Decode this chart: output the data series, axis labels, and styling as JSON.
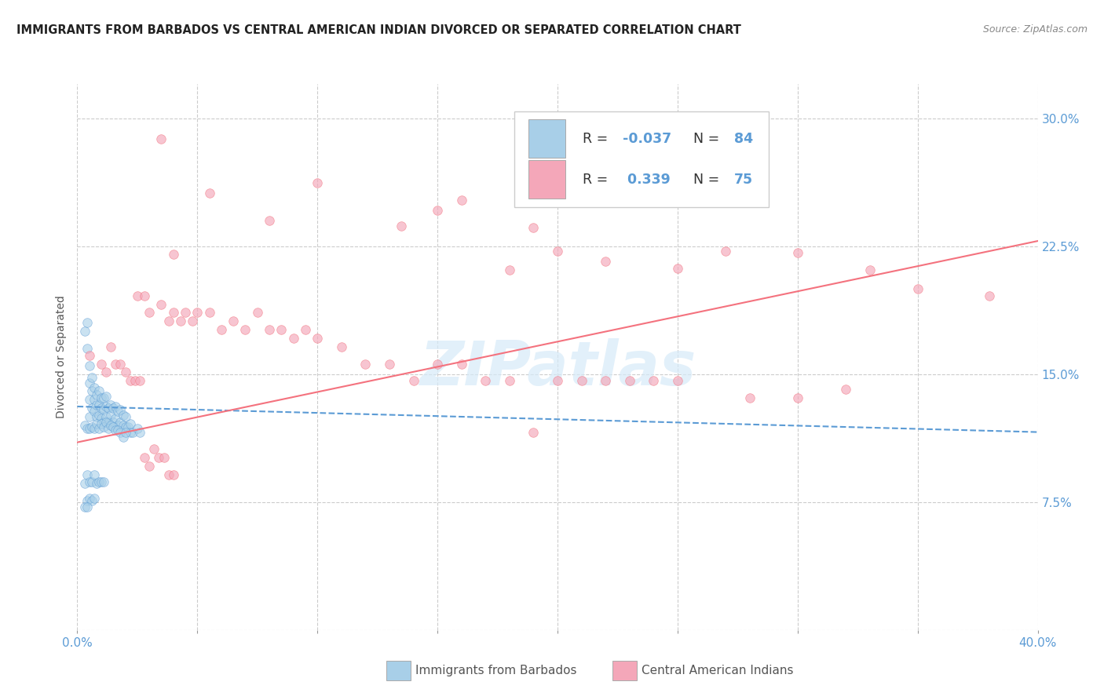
{
  "title": "IMMIGRANTS FROM BARBADOS VS CENTRAL AMERICAN INDIAN DIVORCED OR SEPARATED CORRELATION CHART",
  "source": "Source: ZipAtlas.com",
  "ylabel": "Divorced or Separated",
  "xlim": [
    0.0,
    0.4
  ],
  "ylim": [
    0.0,
    0.32
  ],
  "xticks": [
    0.0,
    0.05,
    0.1,
    0.15,
    0.2,
    0.25,
    0.3,
    0.35,
    0.4
  ],
  "yticks": [
    0.0,
    0.075,
    0.15,
    0.225,
    0.3
  ],
  "ytick_labels": [
    "",
    "7.5%",
    "15.0%",
    "22.5%",
    "30.0%"
  ],
  "color_blue": "#a8cfe8",
  "color_pink": "#f4a7b9",
  "color_blue_line": "#5b9bd5",
  "color_pink_line": "#f4727e",
  "blue_scatter_x": [
    0.003,
    0.004,
    0.004,
    0.005,
    0.005,
    0.005,
    0.005,
    0.006,
    0.006,
    0.006,
    0.007,
    0.007,
    0.007,
    0.008,
    0.008,
    0.008,
    0.009,
    0.009,
    0.009,
    0.01,
    0.01,
    0.01,
    0.011,
    0.011,
    0.011,
    0.012,
    0.012,
    0.012,
    0.013,
    0.013,
    0.014,
    0.014,
    0.015,
    0.015,
    0.016,
    0.016,
    0.017,
    0.017,
    0.018,
    0.018,
    0.019,
    0.019,
    0.02,
    0.02,
    0.021,
    0.022,
    0.022,
    0.023,
    0.025,
    0.026,
    0.003,
    0.004,
    0.005,
    0.006,
    0.007,
    0.008,
    0.009,
    0.01,
    0.011,
    0.012,
    0.013,
    0.014,
    0.015,
    0.016,
    0.017,
    0.018,
    0.019,
    0.02,
    0.003,
    0.004,
    0.005,
    0.006,
    0.007,
    0.008,
    0.009,
    0.01,
    0.011,
    0.004,
    0.005,
    0.006,
    0.007,
    0.003,
    0.004
  ],
  "blue_scatter_y": [
    0.175,
    0.165,
    0.18,
    0.125,
    0.135,
    0.145,
    0.155,
    0.13,
    0.14,
    0.148,
    0.128,
    0.135,
    0.142,
    0.125,
    0.132,
    0.138,
    0.126,
    0.132,
    0.14,
    0.124,
    0.13,
    0.136,
    0.122,
    0.129,
    0.136,
    0.125,
    0.131,
    0.137,
    0.122,
    0.13,
    0.126,
    0.132,
    0.122,
    0.13,
    0.124,
    0.131,
    0.12,
    0.128,
    0.122,
    0.129,
    0.12,
    0.126,
    0.119,
    0.125,
    0.119,
    0.116,
    0.121,
    0.116,
    0.118,
    0.116,
    0.12,
    0.118,
    0.118,
    0.119,
    0.118,
    0.121,
    0.118,
    0.121,
    0.119,
    0.122,
    0.118,
    0.12,
    0.119,
    0.117,
    0.117,
    0.116,
    0.113,
    0.116,
    0.086,
    0.091,
    0.087,
    0.087,
    0.091,
    0.086,
    0.087,
    0.087,
    0.087,
    0.076,
    0.077,
    0.076,
    0.077,
    0.072,
    0.072
  ],
  "pink_scatter_x": [
    0.035,
    0.04,
    0.055,
    0.08,
    0.1,
    0.135,
    0.15,
    0.16,
    0.18,
    0.19,
    0.2,
    0.22,
    0.25,
    0.27,
    0.3,
    0.33,
    0.35,
    0.38,
    0.025,
    0.028,
    0.03,
    0.035,
    0.038,
    0.04,
    0.043,
    0.045,
    0.048,
    0.05,
    0.055,
    0.06,
    0.065,
    0.07,
    0.075,
    0.08,
    0.085,
    0.09,
    0.095,
    0.1,
    0.11,
    0.12,
    0.13,
    0.14,
    0.15,
    0.16,
    0.17,
    0.18,
    0.19,
    0.2,
    0.21,
    0.22,
    0.23,
    0.24,
    0.25,
    0.28,
    0.3,
    0.32,
    0.005,
    0.01,
    0.012,
    0.014,
    0.016,
    0.018,
    0.02,
    0.022,
    0.024,
    0.026,
    0.028,
    0.03,
    0.032,
    0.034,
    0.036,
    0.038,
    0.04
  ],
  "pink_scatter_y": [
    0.288,
    0.22,
    0.256,
    0.24,
    0.262,
    0.237,
    0.246,
    0.252,
    0.211,
    0.236,
    0.222,
    0.216,
    0.212,
    0.222,
    0.221,
    0.211,
    0.2,
    0.196,
    0.196,
    0.196,
    0.186,
    0.191,
    0.181,
    0.186,
    0.181,
    0.186,
    0.181,
    0.186,
    0.186,
    0.176,
    0.181,
    0.176,
    0.186,
    0.176,
    0.176,
    0.171,
    0.176,
    0.171,
    0.166,
    0.156,
    0.156,
    0.146,
    0.156,
    0.156,
    0.146,
    0.146,
    0.116,
    0.146,
    0.146,
    0.146,
    0.146,
    0.146,
    0.146,
    0.136,
    0.136,
    0.141,
    0.161,
    0.156,
    0.151,
    0.166,
    0.156,
    0.156,
    0.151,
    0.146,
    0.146,
    0.146,
    0.101,
    0.096,
    0.106,
    0.101,
    0.101,
    0.091,
    0.091
  ],
  "blue_line_x": [
    0.0,
    0.4
  ],
  "blue_line_y": [
    0.131,
    0.116
  ],
  "pink_line_x": [
    0.0,
    0.4
  ],
  "pink_line_y": [
    0.11,
    0.228
  ]
}
